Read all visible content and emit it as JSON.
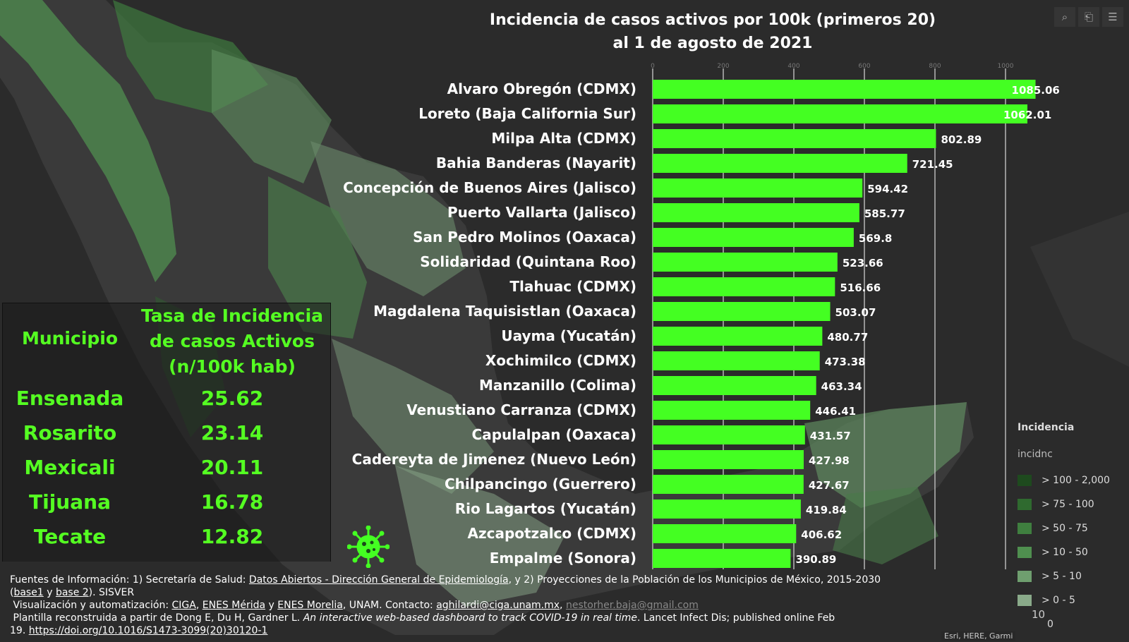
{
  "toolbar": {
    "search_icon": "search-icon",
    "bookmark_icon": "bookmark-icon",
    "list_icon": "list-icon"
  },
  "colors": {
    "bar": "#44ff22",
    "table_text": "#55ff22",
    "background": "#2b2b2b"
  },
  "chart_data": {
    "type": "bar",
    "orientation": "horizontal",
    "title": "Incidencia de casos activos por 100k (primeros 20)",
    "subtitle": "al 1 de agosto de 2021",
    "xlim": [
      0,
      1100
    ],
    "xticks": [
      "0",
      "200",
      "400",
      "600",
      "800",
      "1000"
    ],
    "grid": true,
    "categories": [
      "Alvaro Obregón (CDMX)",
      "Loreto (Baja California Sur)",
      "Milpa Alta (CDMX)",
      "Bahia Banderas (Nayarit)",
      "Concepción de Buenos Aires (Jalisco)",
      "Puerto Vallarta (Jalisco)",
      "San Pedro Molinos (Oaxaca)",
      "Solidaridad (Quintana Roo)",
      "Tlahuac (CDMX)",
      "Magdalena Taquisistlan (Oaxaca)",
      "Uayma (Yucatán)",
      "Xochimilco (CDMX)",
      "Manzanillo (Colima)",
      "Venustiano Carranza (CDMX)",
      "Capulalpan  (Oaxaca)",
      "Cadereyta de Jimenez (Nuevo León)",
      "Chilpancingo (Guerrero)",
      "Rio Lagartos (Yucatán)",
      "Azcapotzalco (CDMX)",
      "Empalme (Sonora)"
    ],
    "values": [
      1085.06,
      1062.01,
      802.89,
      721.45,
      594.42,
      585.77,
      569.8,
      523.66,
      516.66,
      503.07,
      480.77,
      473.38,
      463.34,
      446.41,
      431.57,
      427.98,
      427.67,
      419.84,
      406.62,
      390.89
    ],
    "value_labels": [
      "1085.06",
      "1062.01",
      "802.89",
      "721.45",
      "594.42",
      "585.77",
      "569.8",
      "523.66",
      "516.66",
      "503.07",
      "480.77",
      "473.38",
      "463.34",
      "446.41",
      "431.57",
      "427.98",
      "427.67",
      "419.84",
      "406.62",
      "390.89"
    ]
  },
  "table": {
    "header_municipio": "Municipio",
    "header_rate_lines": [
      "Tasa de Incidencia",
      "de casos Activos",
      "(n/100k hab)"
    ],
    "rows": [
      {
        "name": "Ensenada",
        "value": "25.62"
      },
      {
        "name": "Rosarito",
        "value": "23.14"
      },
      {
        "name": "Mexicali",
        "value": "20.11"
      },
      {
        "name": "Tijuana",
        "value": "16.78"
      },
      {
        "name": "Tecate",
        "value": "12.82"
      }
    ]
  },
  "legend": {
    "title": "Incidencia",
    "field": "incidnc",
    "items": [
      {
        "label": "> 100 - 2,000",
        "color": "#1e4a1e"
      },
      {
        "label": "> 75 - 100",
        "color": "#2f6a2f"
      },
      {
        "label": "> 50 - 75",
        "color": "#3f7f3f"
      },
      {
        "label": "> 10 - 50",
        "color": "#4f8f4f"
      },
      {
        "label": "> 5 - 10",
        "color": "#6f9f6f"
      },
      {
        "label": "> 0 - 5",
        "color": "#8aaa8a"
      }
    ],
    "zero_label": "0",
    "scale_label": "10"
  },
  "sources": {
    "l1_pre": "Fuentes de Información: 1) Secretaría de Salud: ",
    "l1_link": "Datos Abiertos - Dirección General de Epidemiología",
    "l1_post": ", y 2) Proyecciones de la Población de los Municipios de México, 2015-2030",
    "l2_open": "(",
    "l2_link1": "base1",
    "l2_mid": " y ",
    "l2_link2": "base 2",
    "l2_post": "). SISVER",
    "l3_pre": "Visualización y automatización: ",
    "l3_ciga": "CIGA",
    "l3_sep1": ", ",
    "l3_merida": "ENES Mérida",
    "l3_y": " y ",
    "l3_morelia": "ENES Morelia",
    "l3_mid": ", UNAM. Contacto: ",
    "l3_email1": "aghilardi@ciga.unam.mx",
    "l3_sep2": ", ",
    "l3_email2": "nestorher.baja@gmail.com",
    "l4_pre": "Plantilla reconstruida a partir de Dong E, Du H, Gardner L. ",
    "l4_italic": "An interactive web-based dashboard to track COVID-19 in real time",
    "l4_post": ". Lancet Infect Dis; published online Feb",
    "l5_pre": "19. ",
    "l5_doi": "https://doi.org/10.1016/S1473-3099(20)30120-1"
  },
  "credit": "Esri, HERE, Garmi"
}
